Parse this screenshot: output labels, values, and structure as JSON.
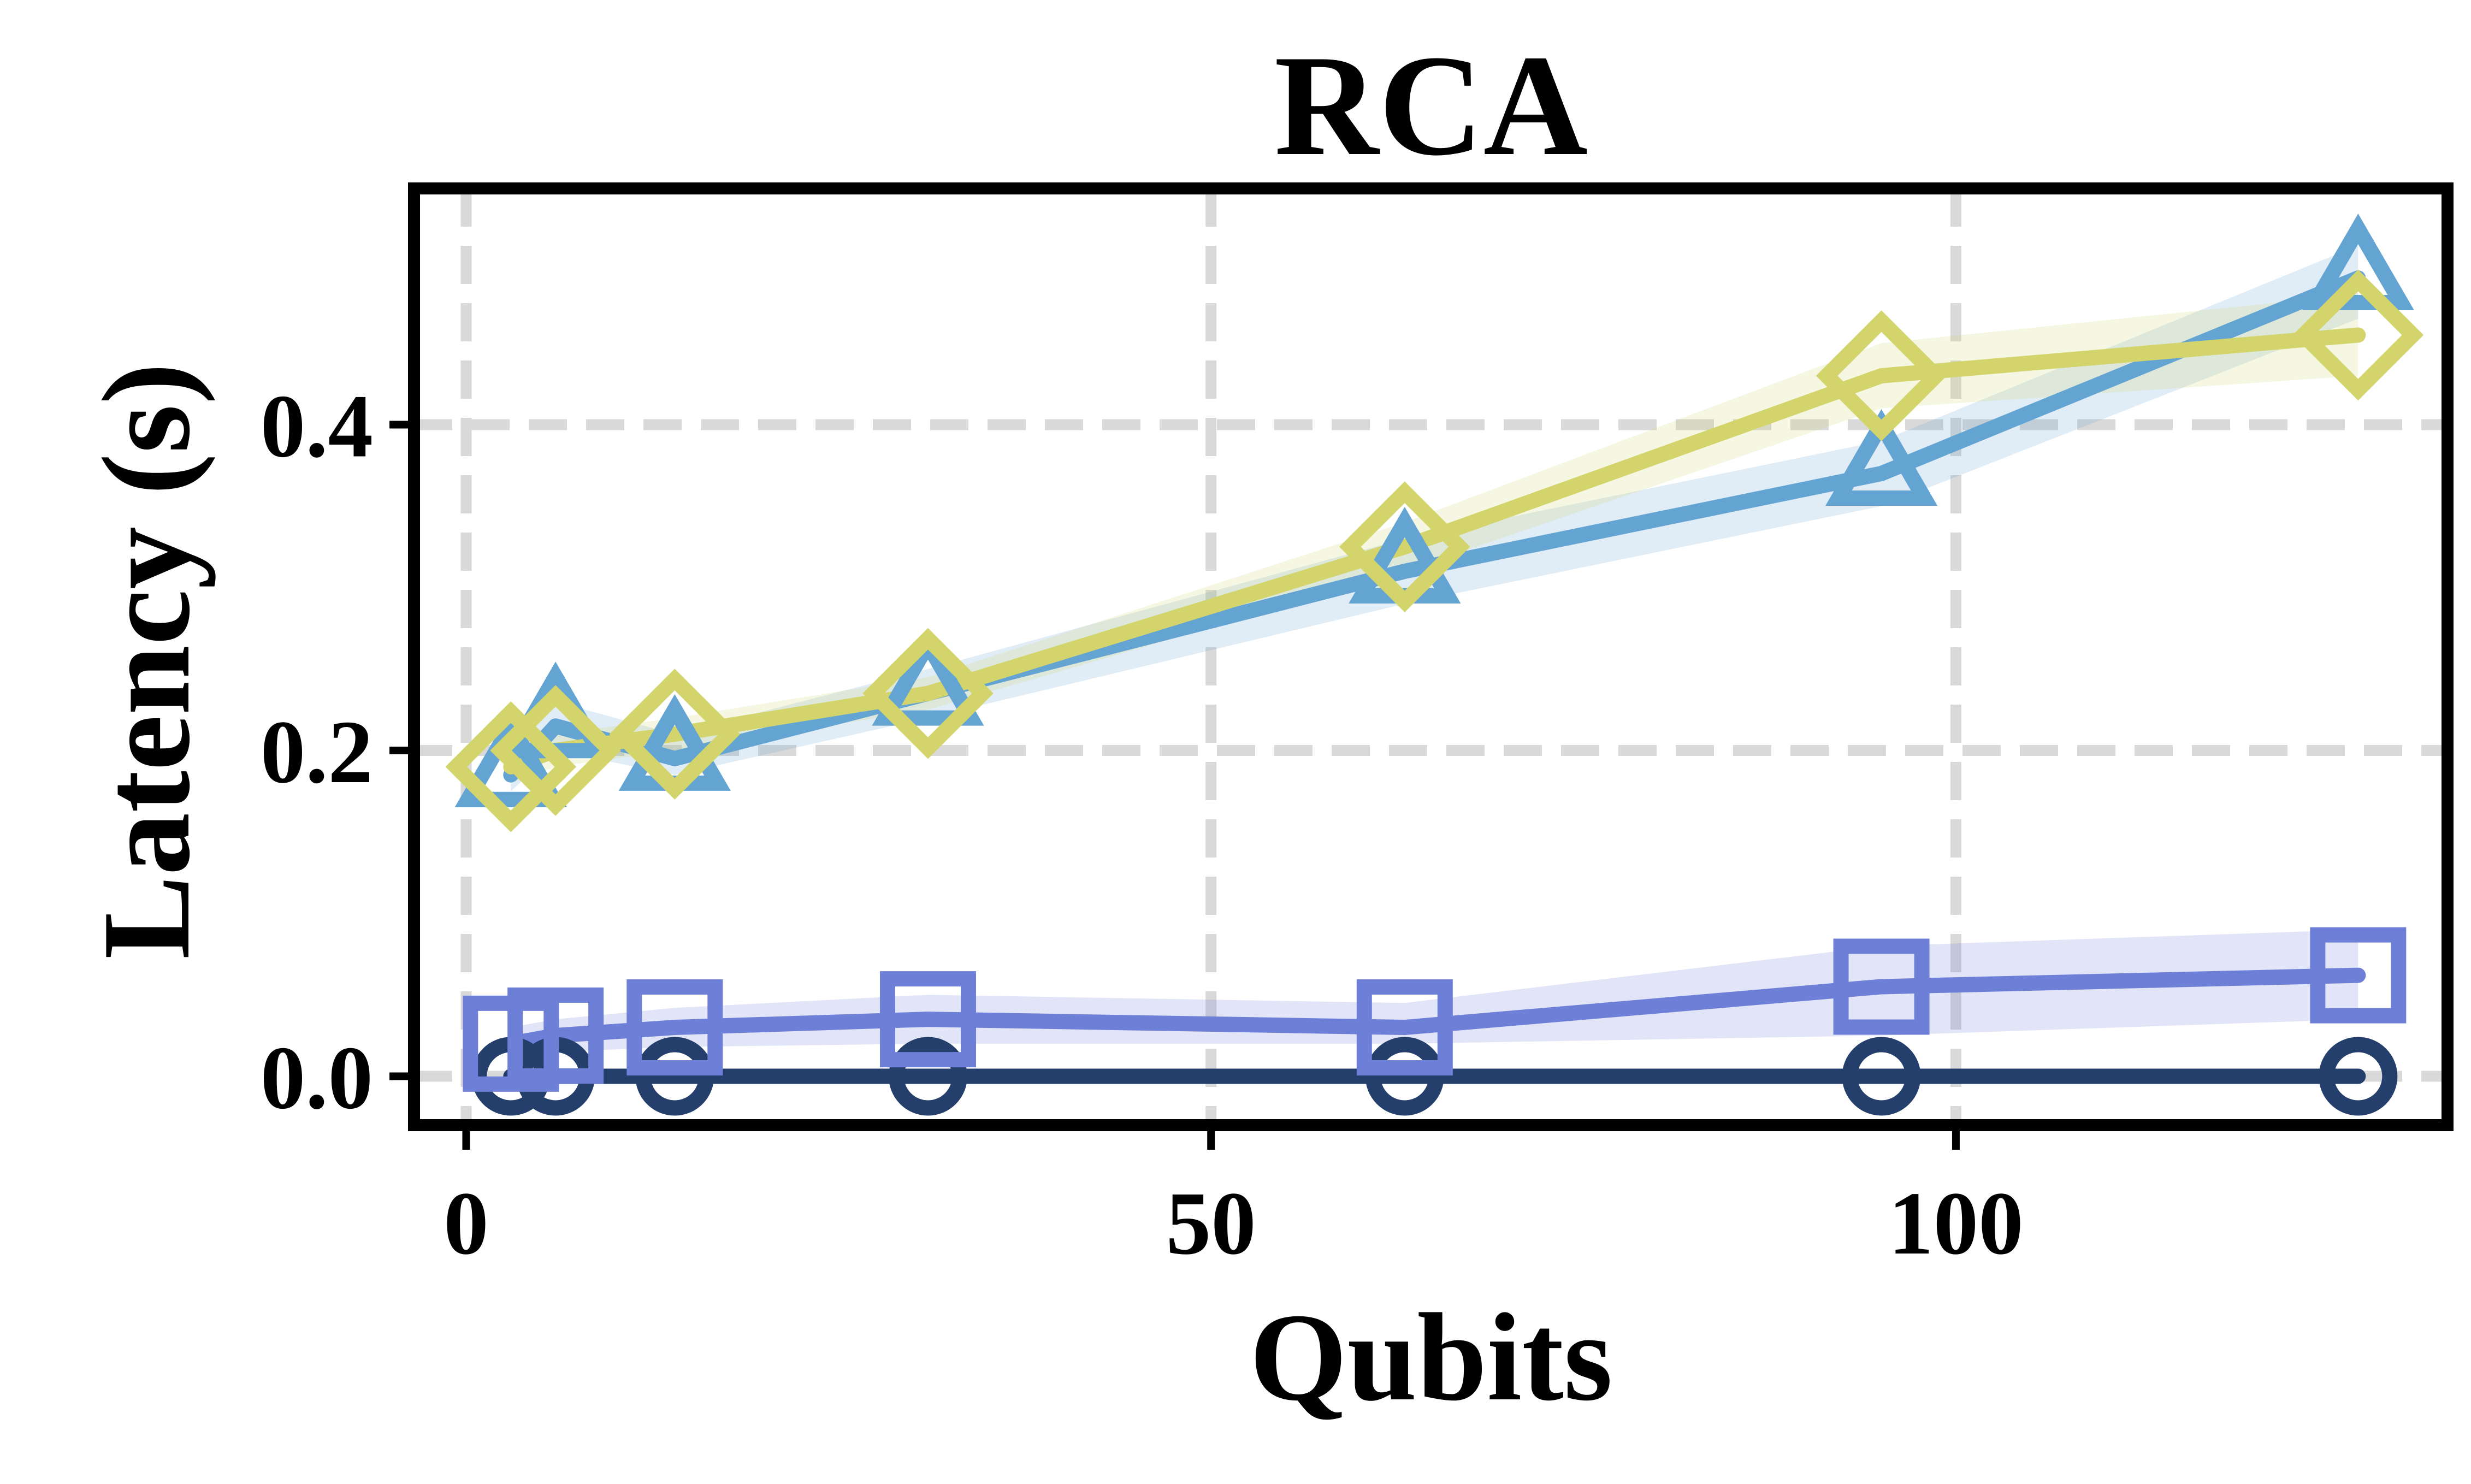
{
  "chart_data": {
    "type": "line",
    "title": "RCA",
    "xlabel": "Qubits",
    "ylabel": "Latency (s)",
    "xlim": [
      -3.5,
      133
    ],
    "ylim": [
      -0.03,
      0.545
    ],
    "xticks": [
      0,
      50,
      100
    ],
    "xtick_labels": [
      "0",
      "50",
      "100"
    ],
    "yticks": [
      0.0,
      0.2,
      0.4
    ],
    "ytick_labels": [
      "0.0",
      "0.2",
      "0.4"
    ],
    "grid": true,
    "legend": "none",
    "x": [
      3,
      6,
      14,
      31,
      63,
      95,
      127
    ],
    "series": [
      {
        "name": "navy-circle",
        "color": "#243f6b",
        "marker": "circle",
        "values": [
          0.0,
          0.0,
          0.0,
          0.0,
          0.0,
          0.0,
          0.0
        ],
        "lower": [
          0.0,
          0.0,
          0.0,
          0.0,
          0.0,
          0.0,
          0.0
        ],
        "upper": [
          0.0,
          0.0,
          0.0,
          0.0,
          0.0,
          0.0,
          0.0
        ]
      },
      {
        "name": "purple-square",
        "color": "#6e7fd8",
        "marker": "square",
        "values": [
          0.02,
          0.025,
          0.03,
          0.035,
          0.03,
          0.055,
          0.062
        ],
        "lower": [
          0.01,
          0.015,
          0.018,
          0.02,
          0.02,
          0.025,
          0.035
        ],
        "upper": [
          0.03,
          0.035,
          0.042,
          0.05,
          0.045,
          0.08,
          0.09
        ]
      },
      {
        "name": "blue-triangle",
        "color": "#63a4d2",
        "marker": "triangle",
        "values": [
          0.185,
          0.215,
          0.195,
          0.235,
          0.31,
          0.37,
          0.49
        ],
        "lower": [
          0.175,
          0.2,
          0.185,
          0.22,
          0.29,
          0.35,
          0.465
        ],
        "upper": [
          0.195,
          0.23,
          0.21,
          0.25,
          0.33,
          0.39,
          0.51
        ]
      },
      {
        "name": "yellow-diamond",
        "color": "#d3d56c",
        "marker": "diamond",
        "values": [
          0.19,
          0.2,
          0.21,
          0.235,
          0.325,
          0.43,
          0.455
        ],
        "lower": [
          0.18,
          0.19,
          0.2,
          0.225,
          0.31,
          0.41,
          0.43
        ],
        "upper": [
          0.2,
          0.21,
          0.22,
          0.245,
          0.34,
          0.45,
          0.48
        ]
      }
    ]
  }
}
